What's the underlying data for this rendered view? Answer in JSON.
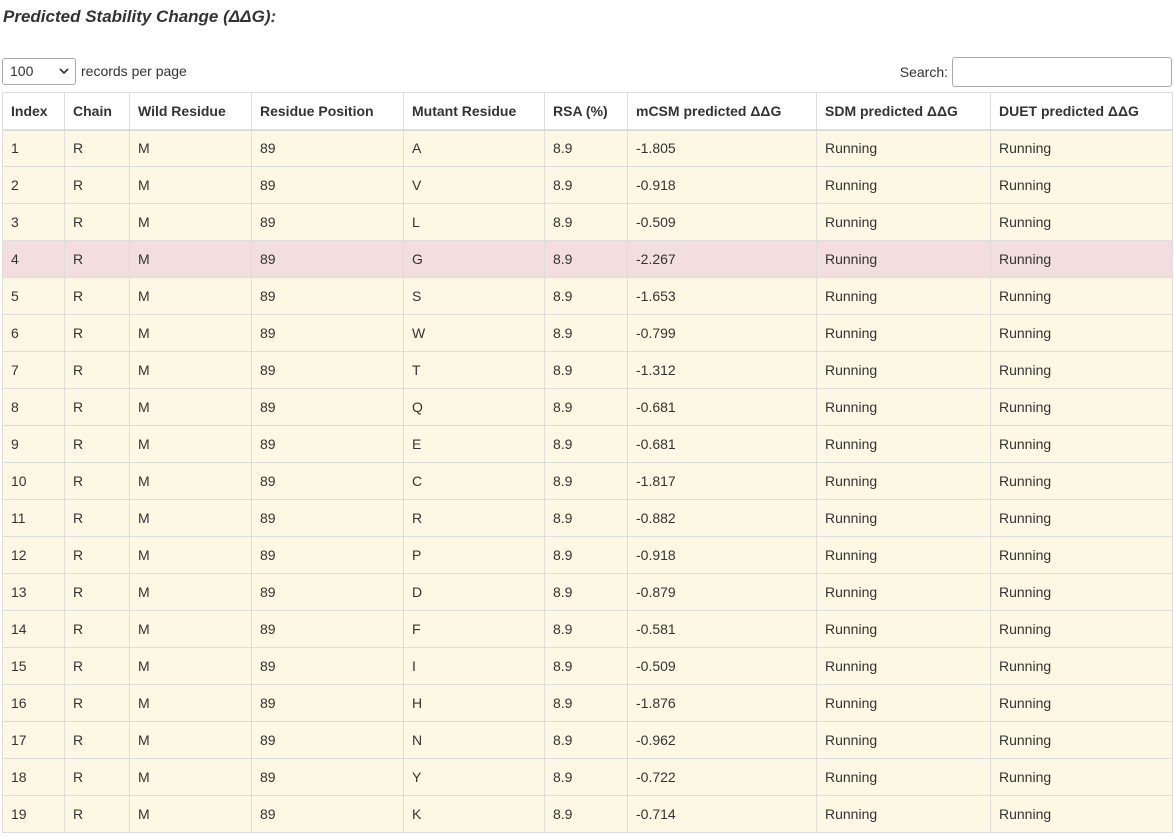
{
  "page": {
    "title": "Predicted Stability Change (ΔΔG):"
  },
  "controls": {
    "length_value": "100",
    "length_label": "records per page",
    "search_label": "Search:",
    "search_value": ""
  },
  "table": {
    "headers": [
      "Index",
      "Chain",
      "Wild Residue",
      "Residue Position",
      "Mutant Residue",
      "RSA (%)",
      "mCSM predicted ΔΔG",
      "SDM predicted ΔΔG",
      "DUET predicted ΔΔG"
    ],
    "rows": [
      {
        "cells": [
          "1",
          "R",
          "M",
          "89",
          "A",
          "8.9",
          "-1.805",
          "Running",
          "Running"
        ],
        "status": "warning"
      },
      {
        "cells": [
          "2",
          "R",
          "M",
          "89",
          "V",
          "8.9",
          "-0.918",
          "Running",
          "Running"
        ],
        "status": "warning"
      },
      {
        "cells": [
          "3",
          "R",
          "M",
          "89",
          "L",
          "8.9",
          "-0.509",
          "Running",
          "Running"
        ],
        "status": "warning"
      },
      {
        "cells": [
          "4",
          "R",
          "M",
          "89",
          "G",
          "8.9",
          "-2.267",
          "Running",
          "Running"
        ],
        "status": "danger"
      },
      {
        "cells": [
          "5",
          "R",
          "M",
          "89",
          "S",
          "8.9",
          "-1.653",
          "Running",
          "Running"
        ],
        "status": "warning"
      },
      {
        "cells": [
          "6",
          "R",
          "M",
          "89",
          "W",
          "8.9",
          "-0.799",
          "Running",
          "Running"
        ],
        "status": "warning"
      },
      {
        "cells": [
          "7",
          "R",
          "M",
          "89",
          "T",
          "8.9",
          "-1.312",
          "Running",
          "Running"
        ],
        "status": "warning"
      },
      {
        "cells": [
          "8",
          "R",
          "M",
          "89",
          "Q",
          "8.9",
          "-0.681",
          "Running",
          "Running"
        ],
        "status": "warning"
      },
      {
        "cells": [
          "9",
          "R",
          "M",
          "89",
          "E",
          "8.9",
          "-0.681",
          "Running",
          "Running"
        ],
        "status": "warning"
      },
      {
        "cells": [
          "10",
          "R",
          "M",
          "89",
          "C",
          "8.9",
          "-1.817",
          "Running",
          "Running"
        ],
        "status": "warning"
      },
      {
        "cells": [
          "11",
          "R",
          "M",
          "89",
          "R",
          "8.9",
          "-0.882",
          "Running",
          "Running"
        ],
        "status": "warning"
      },
      {
        "cells": [
          "12",
          "R",
          "M",
          "89",
          "P",
          "8.9",
          "-0.918",
          "Running",
          "Running"
        ],
        "status": "warning"
      },
      {
        "cells": [
          "13",
          "R",
          "M",
          "89",
          "D",
          "8.9",
          "-0.879",
          "Running",
          "Running"
        ],
        "status": "warning"
      },
      {
        "cells": [
          "14",
          "R",
          "M",
          "89",
          "F",
          "8.9",
          "-0.581",
          "Running",
          "Running"
        ],
        "status": "warning"
      },
      {
        "cells": [
          "15",
          "R",
          "M",
          "89",
          "I",
          "8.9",
          "-0.509",
          "Running",
          "Running"
        ],
        "status": "warning"
      },
      {
        "cells": [
          "16",
          "R",
          "M",
          "89",
          "H",
          "8.9",
          "-1.876",
          "Running",
          "Running"
        ],
        "status": "warning"
      },
      {
        "cells": [
          "17",
          "R",
          "M",
          "89",
          "N",
          "8.9",
          "-0.962",
          "Running",
          "Running"
        ],
        "status": "warning"
      },
      {
        "cells": [
          "18",
          "R",
          "M",
          "89",
          "Y",
          "8.9",
          "-0.722",
          "Running",
          "Running"
        ],
        "status": "warning"
      },
      {
        "cells": [
          "19",
          "R",
          "M",
          "89",
          "K",
          "8.9",
          "-0.714",
          "Running",
          "Running"
        ],
        "status": "warning"
      }
    ]
  },
  "colors": {
    "row_warning": "#fcf8e3",
    "row_danger": "#f2dede",
    "border": "#dddddd",
    "text": "#333333"
  },
  "icons": {
    "length_dropdown": "chevron-down-icon"
  }
}
